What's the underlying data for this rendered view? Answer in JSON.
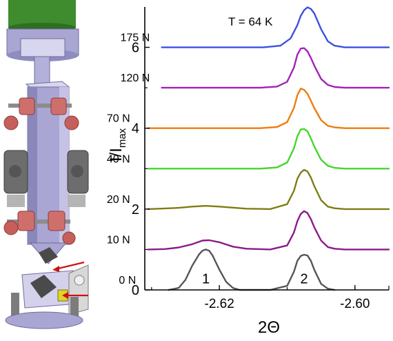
{
  "annotation": "T = 64 K",
  "colors": {
    "axis": "#000000",
    "device_body": "#a9a6d3",
    "device_dark": "#6f6c9a",
    "device_light": "#d8d6ef",
    "clamp_red": "#cf6f6c",
    "device_top": "#3f8c2f",
    "steel": "#7c7c7c"
  },
  "chart_data": {
    "type": "line",
    "title": "",
    "xlabel": "2Θ",
    "ylabel": "I/I_max",
    "ylabel_main": "I/I",
    "ylabel_sub": "max",
    "xlim": [
      -2.631,
      -2.595
    ],
    "ylim": [
      0,
      7
    ],
    "x_ticks": [
      -2.62,
      -2.6
    ],
    "x_tick_labels": [
      "-2.62",
      "-2.60"
    ],
    "y_ticks": [
      0,
      2,
      4,
      6
    ],
    "y_tick_labels": [
      "0",
      "2",
      "4",
      "6"
    ],
    "grid": false,
    "peak_labels": [
      {
        "text": "1",
        "x": -2.622,
        "y": 0.3
      },
      {
        "text": "2",
        "x": -2.6075,
        "y": 0.3
      }
    ],
    "series": [
      {
        "name": "0 N",
        "color": "#555555",
        "offset": 0,
        "x": [
          -2.6275,
          -2.626,
          -2.625,
          -2.624,
          -2.623,
          -2.6225,
          -2.622,
          -2.6215,
          -2.621,
          -2.62,
          -2.619,
          -2.618,
          -2.617,
          -2.6125,
          -2.61,
          -2.609,
          -2.6085,
          -2.608,
          -2.6075,
          -2.607,
          -2.6065,
          -2.606,
          -2.605,
          -2.604,
          -2.603
        ],
        "y": [
          0,
          0.05,
          0.25,
          0.6,
          0.88,
          0.97,
          1.0,
          0.97,
          0.85,
          0.5,
          0.2,
          0.05,
          0,
          0,
          0.1,
          0.45,
          0.72,
          0.84,
          0.87,
          0.85,
          0.72,
          0.5,
          0.15,
          0.03,
          0
        ]
      },
      {
        "name": "10 N",
        "color": "#8b1a8b",
        "offset": 1,
        "x": [
          -2.6305,
          -2.628,
          -2.626,
          -2.624,
          -2.6225,
          -2.6215,
          -2.62,
          -2.618,
          -2.616,
          -2.6125,
          -2.61,
          -2.609,
          -2.6085,
          -2.608,
          -2.6075,
          -2.607,
          -2.6065,
          -2.606,
          -2.605,
          -2.604,
          -2.603,
          -2.6015,
          -2.595
        ],
        "y": [
          0,
          0.01,
          0.05,
          0.13,
          0.22,
          0.23,
          0.18,
          0.07,
          0.02,
          0,
          0.1,
          0.42,
          0.7,
          0.88,
          0.95,
          0.9,
          0.75,
          0.55,
          0.22,
          0.06,
          0.02,
          0,
          0
        ]
      },
      {
        "name": "20 N",
        "color": "#7d7d14",
        "offset": 2,
        "x": [
          -2.6305,
          -2.626,
          -2.624,
          -2.622,
          -2.62,
          -2.616,
          -2.6125,
          -2.61,
          -2.609,
          -2.6085,
          -2.608,
          -2.6075,
          -2.607,
          -2.6065,
          -2.606,
          -2.605,
          -2.604,
          -2.603,
          -2.6015,
          -2.595
        ],
        "y": [
          0,
          0.03,
          0.06,
          0.08,
          0.06,
          0.01,
          0,
          0.12,
          0.45,
          0.75,
          0.9,
          0.97,
          0.93,
          0.78,
          0.57,
          0.22,
          0.06,
          0.02,
          0,
          0
        ]
      },
      {
        "name": "40 N",
        "color": "#44d62c",
        "offset": 3,
        "x": [
          -2.6305,
          -2.614,
          -2.6115,
          -2.61,
          -2.609,
          -2.6085,
          -2.608,
          -2.6075,
          -2.607,
          -2.6065,
          -2.606,
          -2.605,
          -2.604,
          -2.603,
          -2.6015,
          -2.595
        ],
        "y": [
          0,
          0,
          0.03,
          0.15,
          0.5,
          0.8,
          0.97,
          0.98,
          0.92,
          0.75,
          0.55,
          0.22,
          0.07,
          0.02,
          0,
          0
        ]
      },
      {
        "name": "70 N",
        "color": "#f07c0c",
        "offset": 4,
        "x": [
          -2.6305,
          -2.614,
          -2.6115,
          -2.61,
          -2.609,
          -2.6085,
          -2.608,
          -2.6075,
          -2.607,
          -2.6065,
          -2.606,
          -2.605,
          -2.604,
          -2.603,
          -2.6015,
          -2.595
        ],
        "y": [
          0,
          0,
          0.03,
          0.15,
          0.5,
          0.82,
          0.98,
          0.95,
          0.85,
          0.68,
          0.5,
          0.2,
          0.06,
          0.02,
          0,
          0
        ]
      },
      {
        "name": "120 N",
        "color": "#a51fb8",
        "offset": 5,
        "x": [
          -2.6285,
          -2.614,
          -2.6115,
          -2.61,
          -2.609,
          -2.6085,
          -2.608,
          -2.6075,
          -2.607,
          -2.6065,
          -2.606,
          -2.605,
          -2.604,
          -2.603,
          -2.6015,
          -2.595
        ],
        "y": [
          0,
          0,
          0.03,
          0.15,
          0.5,
          0.82,
          0.97,
          0.98,
          0.9,
          0.74,
          0.55,
          0.22,
          0.07,
          0.02,
          0,
          0
        ]
      },
      {
        "name": "175 N",
        "color": "#3c4fe0",
        "offset": 6,
        "x": [
          -2.6285,
          -2.6135,
          -2.611,
          -2.6095,
          -2.6085,
          -2.608,
          -2.6075,
          -2.607,
          -2.6065,
          -2.606,
          -2.6055,
          -2.605,
          -2.604,
          -2.603,
          -2.6015,
          -2.595
        ],
        "y": [
          0,
          0,
          0.04,
          0.22,
          0.55,
          0.78,
          0.92,
          0.99,
          0.95,
          0.84,
          0.65,
          0.45,
          0.15,
          0.04,
          0,
          0
        ]
      }
    ]
  }
}
